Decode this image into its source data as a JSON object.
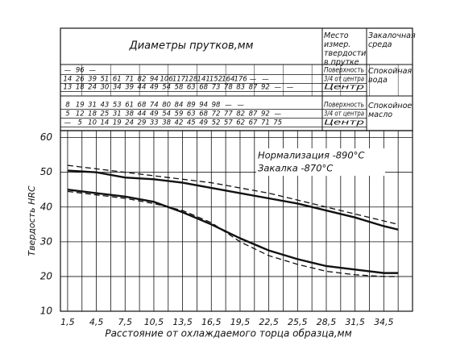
{
  "chart_data": {
    "type": "line",
    "title": "Диаметры прутков,мм",
    "x_label": "Расстояние от охлаждаемого торца образца,мм",
    "y_label": "Твердость HRC",
    "annotations": [
      "Нормализация -890°С",
      "Закалка -870°С"
    ],
    "x": [
      1.5,
      4.5,
      7.5,
      10.5,
      13.5,
      16.5,
      19.5,
      22.5,
      25.5,
      28.5,
      31.5,
      34.5,
      36
    ],
    "series": [
      {
        "color": "#111111",
        "dash": false,
        "values": [
          50.5,
          50,
          48.5,
          48,
          47,
          45.5,
          44,
          42.5,
          41,
          39,
          37,
          34.5,
          33.5
        ]
      },
      {
        "color": "#111111",
        "dash": true,
        "values": [
          52,
          51,
          50,
          49,
          48,
          47,
          45.5,
          44,
          42,
          40,
          38,
          36,
          35
        ]
      },
      {
        "color": "#111111",
        "dash": false,
        "values": [
          45,
          44,
          43,
          41.5,
          38.5,
          35,
          31,
          27.5,
          25,
          23,
          22,
          21,
          21
        ]
      },
      {
        "color": "#111111",
        "dash": true,
        "values": [
          44.5,
          43.5,
          42.5,
          41,
          39,
          35.5,
          30,
          26,
          23.5,
          21.5,
          20.5,
          20,
          20
        ]
      }
    ],
    "xlim": [
      0.75,
      37.5
    ],
    "ylim": [
      10,
      62
    ],
    "xticks": [
      {
        "value": 1.5,
        "label": "1,5"
      },
      {
        "value": 4.5,
        "label": "4,5"
      },
      {
        "value": 7.5,
        "label": "7,5"
      },
      {
        "value": 10.5,
        "label": "10,5"
      },
      {
        "value": 13.5,
        "label": "13,5"
      },
      {
        "value": 16.5,
        "label": "16,5"
      },
      {
        "value": 19.5,
        "label": "19,5"
      },
      {
        "value": 22.5,
        "label": "22,5"
      },
      {
        "value": 25.5,
        "label": "25,5"
      },
      {
        "value": 28.5,
        "label": "28,5"
      },
      {
        "value": 31.5,
        "label": "31,5"
      },
      {
        "value": 34.5,
        "label": "34,5"
      }
    ],
    "xminorticks": [
      3,
      6,
      9,
      12,
      15,
      18,
      21,
      24,
      27,
      30,
      33,
      36
    ],
    "yticks": [
      10,
      20,
      30,
      40,
      50,
      60
    ],
    "grid": true
  },
  "table": {
    "location_header": "Место измер. твердости в прутке",
    "medium_header": "Закалочная среда",
    "groups": [
      {
        "medium": "Спокойная вода",
        "rows": [
          {
            "location": "Поверхность",
            "cells": [
              "—",
              "96",
              "—"
            ]
          },
          {
            "location": "3/4 от центра",
            "cells": [
              "14",
              "26",
              "39",
              "51",
              "61",
              "71",
              "82",
              "94",
              "106",
              "117",
              "128",
              "141",
              "152",
              "164",
              "176",
              "—",
              "—"
            ]
          },
          {
            "location": "Центр",
            "cells": [
              "13",
              "18",
              "24",
              "30",
              "34",
              "39",
              "44",
              "49",
              "54",
              "58",
              "63",
              "68",
              "73",
              "78",
              "83",
              "87",
              "92",
              "—",
              "—"
            ]
          }
        ]
      },
      {
        "medium": "Спокойное масло",
        "rows": [
          {
            "location": "Поверхность",
            "cells": [
              "8",
              "19",
              "31",
              "43",
              "53",
              "61",
              "68",
              "74",
              "80",
              "84",
              "89",
              "94",
              "98",
              "—",
              "—"
            ]
          },
          {
            "location": "3/4 от центра",
            "cells": [
              "5",
              "12",
              "18",
              "25",
              "31",
              "38",
              "44",
              "49",
              "54",
              "59",
              "63",
              "68",
              "72",
              "77",
              "82",
              "87",
              "92",
              "—"
            ]
          },
          {
            "location": "Центр",
            "cells": [
              "—",
              "5",
              "10",
              "14",
              "19",
              "24",
              "29",
              "33",
              "38",
              "42",
              "45",
              "49",
              "52",
              "57",
              "62",
              "67",
              "71",
              "75"
            ]
          }
        ]
      }
    ]
  }
}
